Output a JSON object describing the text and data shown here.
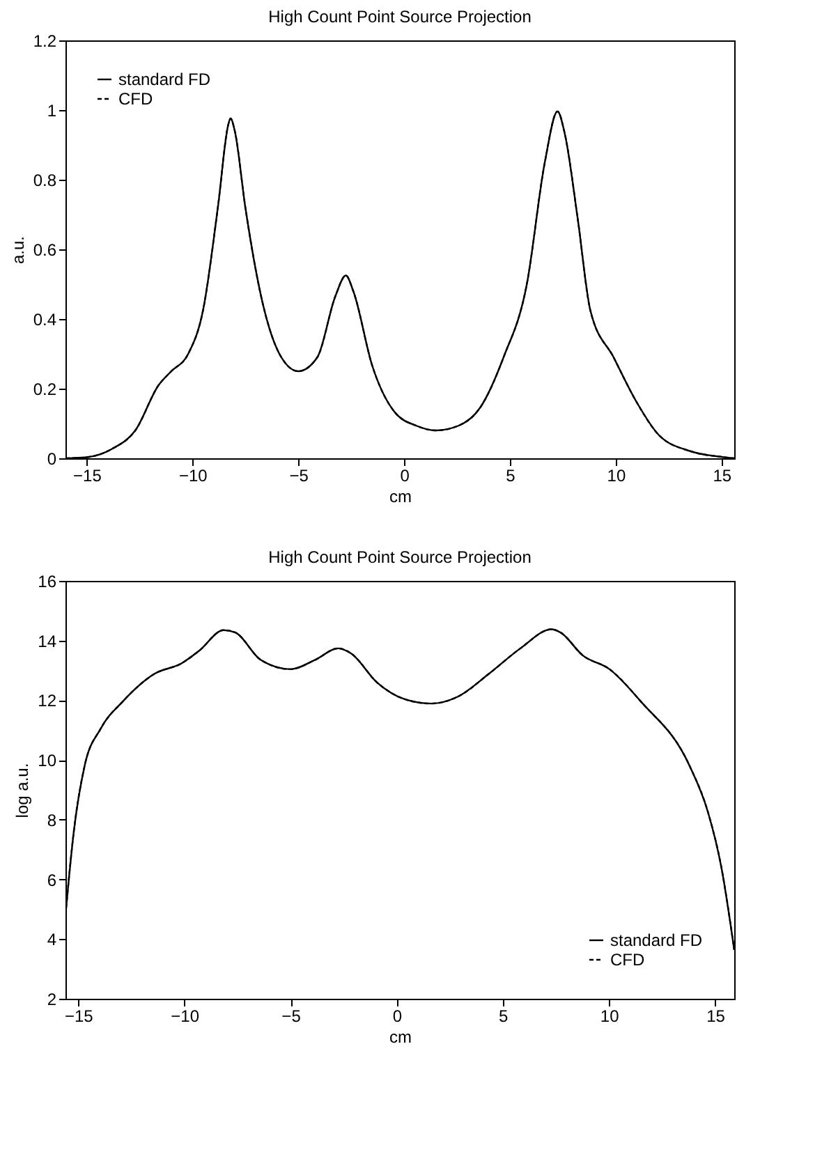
{
  "chart_data": [
    {
      "type": "line",
      "title": "High Count Point Source Projection",
      "xlabel": "cm",
      "ylabel": "a.u.",
      "x": [
        -16,
        -15,
        -13.8,
        -12.7,
        -11.6,
        -11.0,
        -10.2,
        -9.5,
        -8.8,
        -8.3,
        -8.2,
        -8.0,
        -7.5,
        -6.7,
        -5.8,
        -5.0,
        -4.1,
        -3.25,
        -2.75,
        -2.4,
        -1.5,
        -0.45,
        0.6,
        1.5,
        2.55,
        3.6,
        4.7,
        5.8,
        6.65,
        7.25,
        7.6,
        8.2,
        8.8,
        9.9,
        11.0,
        12.05,
        13.55,
        15,
        15.6
      ],
      "series": [
        {
          "name": "standard FD",
          "color": "#000000",
          "line_style": "solid",
          "values": [
            0,
            0.003,
            0.027,
            0.08,
            0.21,
            0.25,
            0.3,
            0.425,
            0.72,
            0.96,
            0.976,
            0.94,
            0.72,
            0.45,
            0.29,
            0.25,
            0.29,
            0.465,
            0.525,
            0.48,
            0.265,
            0.133,
            0.093,
            0.08,
            0.093,
            0.146,
            0.29,
            0.5,
            0.85,
            0.996,
            0.93,
            0.69,
            0.425,
            0.29,
            0.16,
            0.066,
            0.02,
            0.004,
            0
          ]
        },
        {
          "name": "CFD",
          "color": "#000000",
          "line_style": "dashed",
          "values": [
            0,
            0.003,
            0.027,
            0.08,
            0.21,
            0.25,
            0.3,
            0.425,
            0.72,
            0.96,
            0.976,
            0.94,
            0.72,
            0.45,
            0.29,
            0.25,
            0.29,
            0.465,
            0.525,
            0.48,
            0.265,
            0.133,
            0.093,
            0.08,
            0.093,
            0.146,
            0.29,
            0.5,
            0.85,
            0.996,
            0.93,
            0.69,
            0.425,
            0.29,
            0.16,
            0.066,
            0.02,
            0.004,
            0
          ]
        }
      ],
      "xlim": [
        -16,
        15.6
      ],
      "xticks": [
        -15,
        -10,
        -5,
        0,
        5,
        10,
        15
      ],
      "ylim": [
        0,
        1.2
      ],
      "yticks": [
        0,
        0.2,
        0.4,
        0.6,
        0.8,
        1,
        1.2
      ],
      "legend": "top left",
      "grid": false
    },
    {
      "type": "line",
      "title": "High Count Point Source Projection",
      "xlabel": "cm",
      "ylabel": "log a.u.",
      "x": [
        -15.6,
        -15.2,
        -14.7,
        -13.95,
        -12.9,
        -11.4,
        -10.15,
        -9.3,
        -8.15,
        -7.6,
        -6.4,
        -5.0,
        -3.85,
        -2.75,
        -2.17,
        -0.9,
        0.36,
        1.62,
        2.88,
        4.35,
        5.83,
        7.3,
        7.72,
        8.77,
        10.03,
        11.5,
        13.8,
        14.66,
        15.29,
        15.9
      ],
      "series": [
        {
          "name": "standard FD",
          "color": "#000000",
          "line_style": "solid",
          "values": [
            4.8,
            7.65,
            9.8,
            11.04,
            11.96,
            12.89,
            13.23,
            13.66,
            14.35,
            14.27,
            13.35,
            13.04,
            13.35,
            13.74,
            13.58,
            12.58,
            12.04,
            11.89,
            12.12,
            12.89,
            13.74,
            14.38,
            14.27,
            13.5,
            13.04,
            11.96,
            9.8,
            8.26,
            6.42,
            3.64
          ]
        },
        {
          "name": "CFD",
          "color": "#000000",
          "line_style": "dashed",
          "values": [
            4.8,
            7.65,
            9.8,
            11.04,
            11.96,
            12.89,
            13.23,
            13.66,
            14.35,
            14.27,
            13.35,
            13.04,
            13.35,
            13.74,
            13.58,
            12.58,
            12.04,
            11.89,
            12.12,
            12.89,
            13.74,
            14.38,
            14.27,
            13.5,
            13.04,
            11.96,
            9.8,
            8.26,
            6.42,
            3.64
          ]
        }
      ],
      "xlim": [
        -15.6,
        15.9
      ],
      "xticks": [
        -15,
        -10,
        -5,
        0,
        5,
        10,
        15
      ],
      "ylim": [
        2,
        16
      ],
      "yticks": [
        2,
        4,
        6,
        8,
        10,
        12,
        14,
        16
      ],
      "legend": "bottom right",
      "grid": false
    }
  ]
}
